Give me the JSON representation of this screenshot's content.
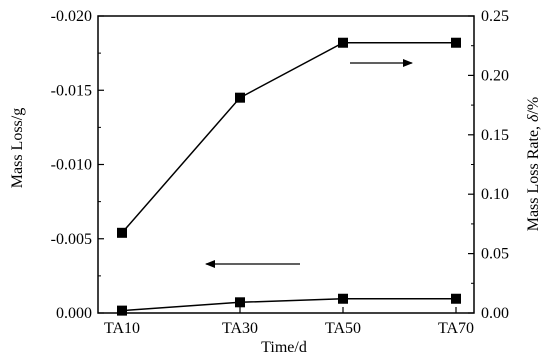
{
  "chart_data": {
    "type": "line",
    "categories": [
      "TA10",
      "TA30",
      "TA50",
      "TA70"
    ],
    "xlabel": "Time/d",
    "ylabel_left": "Mass Loss/g",
    "ylabel_right_prefix": "Mass Loss Rate, ",
    "ylabel_right_symbol": "δ",
    "ylabel_right_suffix": "/%",
    "y_left": {
      "range": [
        0.0,
        -0.02
      ],
      "ticks": [
        0.0,
        -0.005,
        -0.01,
        -0.015,
        -0.02
      ],
      "tick_labels": [
        "0.000",
        "-0.005",
        "-0.010",
        "-0.015",
        "-0.020"
      ]
    },
    "y_right": {
      "range": [
        0.0,
        0.25
      ],
      "ticks": [
        0.0,
        0.05,
        0.1,
        0.15,
        0.2,
        0.25
      ],
      "tick_labels": [
        "0.00",
        "0.05",
        "0.10",
        "0.15",
        "0.20",
        "0.25"
      ]
    },
    "series": [
      {
        "axis": "left",
        "values": [
          -0.0054,
          -0.0145,
          -0.0182,
          -0.0182
        ]
      },
      {
        "axis": "right",
        "values": [
          0.002,
          0.009,
          0.012,
          0.012
        ]
      }
    ],
    "annotations": [
      {
        "type": "arrow",
        "direction": "right",
        "points_to": "right-axis"
      },
      {
        "type": "arrow",
        "direction": "left",
        "points_to": "left-axis"
      }
    ],
    "marker": "square",
    "line_color": "#000000",
    "grid": false
  }
}
